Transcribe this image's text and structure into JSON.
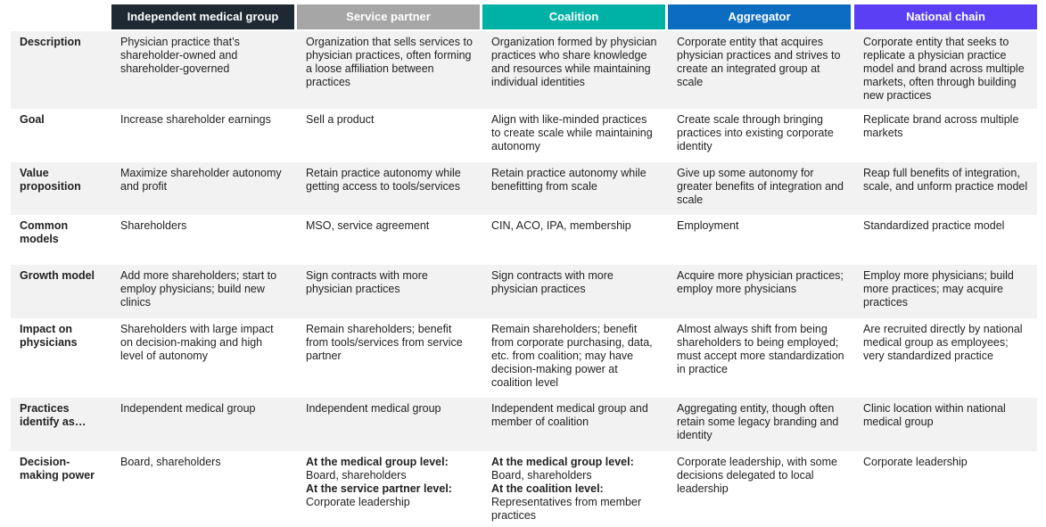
{
  "header": {
    "columns": [
      "Independent medical group",
      "Service partner",
      "Coalition",
      "Aggregator",
      "National chain"
    ]
  },
  "rows": [
    {
      "label": "Description",
      "cells": [
        "Physician practice that’s shareholder-owned and shareholder-governed",
        "Organization that sells services to physician practices, often forming a loose affiliation between practices",
        "Organization formed by physician practices who share knowledge and resources while maintaining individual identities",
        "Corporate entity that acquires physician practices and strives to create an integrated group at scale",
        "Corporate entity that seeks to replicate a physician practice model and brand across multiple markets, often through building new practices"
      ]
    },
    {
      "label": "Goal",
      "cells": [
        "Increase shareholder earnings",
        "Sell a product",
        "Align with like-minded practices to create scale while maintaining autonomy",
        "Create scale through bringing practices into existing corporate identity",
        "Replicate brand across multiple markets"
      ]
    },
    {
      "label": "Value proposition",
      "cells": [
        "Maximize shareholder autonomy and profit",
        "Retain practice autonomy while getting access to tools/services",
        "Retain practice autonomy while benefitting from scale",
        "Give up some autonomy for greater benefits of integration and scale",
        "Reap full benefits of integration, scale, and unform practice model"
      ]
    },
    {
      "label": "Common models",
      "cells": [
        "Shareholders",
        "MSO, service agreement",
        "CIN, ACO, IPA, membership",
        "Employment",
        "Standardized practice model"
      ]
    },
    {
      "label": "Growth model",
      "cells": [
        "Add more shareholders; start to employ physicians; build new clinics",
        "Sign contracts with more physician practices",
        "Sign contracts with more physician practices",
        "Acquire more physician practices; employ more physicians",
        "Employ more physicians; build more practices; may acquire practices"
      ]
    },
    {
      "label": "Impact on physicians",
      "cells": [
        "Shareholders with large impact on decision-making and high level of autonomy",
        "Remain shareholders; benefit from tools/services from service partner",
        "Remain shareholders; benefit from corporate purchasing, data, etc. from coalition; may have decision-making power at coalition level",
        "Almost always shift from being shareholders to being employed; must accept more standardization in practice",
        "Are recruited directly by national medical group as employees; very standardized practice"
      ]
    },
    {
      "label": "Practices identify as…",
      "cells": [
        "Independent medical group",
        "Independent medical group",
        "Independent medical group and member of coalition",
        "Aggregating entity, though often retain some legacy branding and identity",
        "Clinic location within national medical group"
      ]
    },
    {
      "label": "Decision-making power",
      "cells": [
        "Board, shareholders",
        {
          "parts": [
            {
              "bold": "At the medical group level:",
              "text": "Board, shareholders"
            },
            {
              "bold": "At the service partner level:",
              "text": "Corporate leadership"
            }
          ]
        },
        {
          "parts": [
            {
              "bold": "At the medical group level:",
              "text": "Board, shareholders"
            },
            {
              "bold": "At the coalition level:",
              "text": "Representatives from member practices"
            }
          ]
        },
        "Corporate leadership, with some decisions delegated to local leadership",
        "Corporate leadership"
      ]
    }
  ]
}
